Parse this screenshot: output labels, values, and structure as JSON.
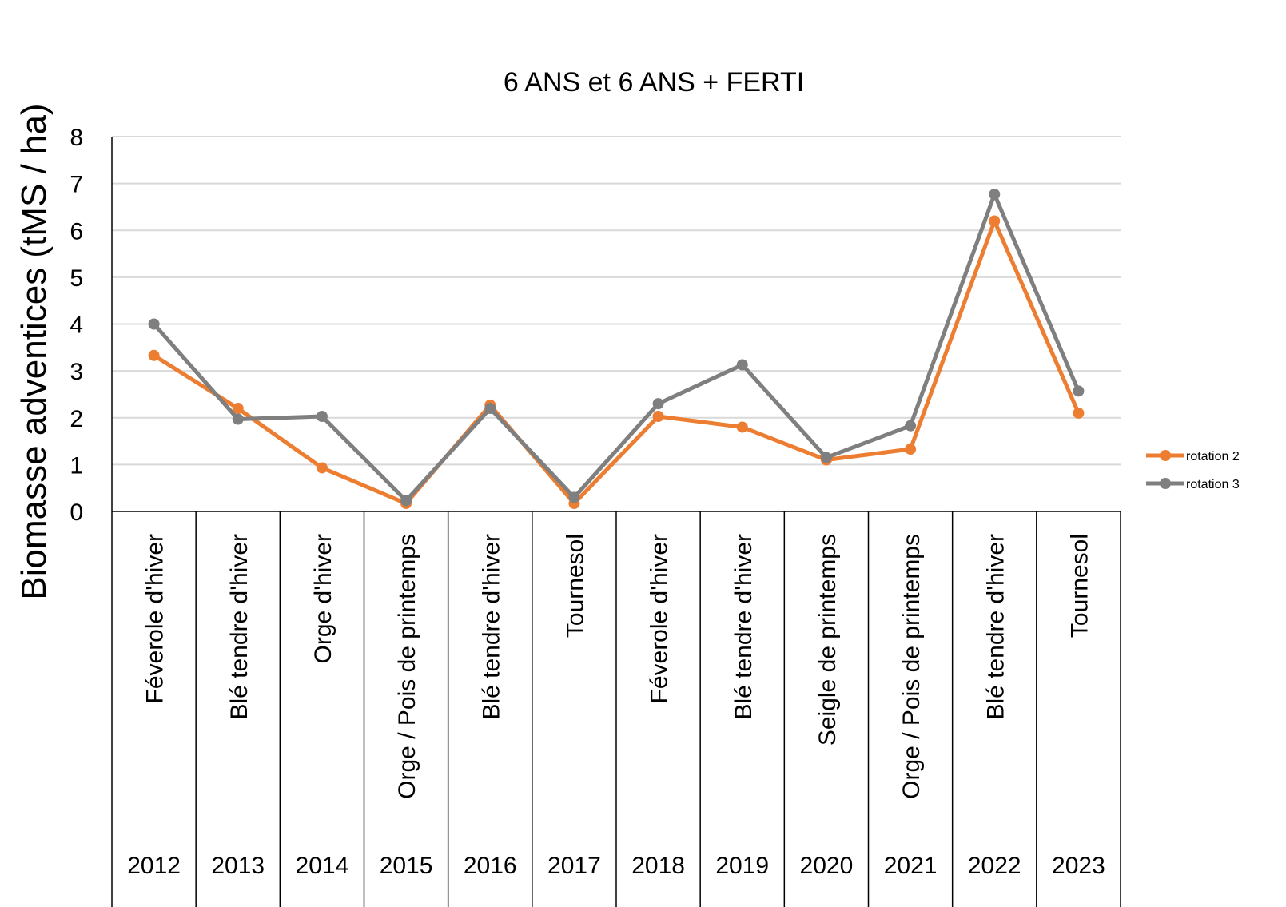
{
  "chart_data": {
    "type": "line",
    "title": "6 ANS et 6 ANS + FERTI",
    "ylabel": "Biomasse adventices (tMS / ha)",
    "xlabel": "",
    "ylim": [
      0,
      8
    ],
    "yticks": [
      0,
      1,
      2,
      3,
      4,
      5,
      6,
      7,
      8
    ],
    "grid": true,
    "legend_position": "right",
    "categories": [
      {
        "crop": "Féverole d'hiver",
        "year": "2012"
      },
      {
        "crop": "Blé tendre d'hiver",
        "year": "2013"
      },
      {
        "crop": "Orge d'hiver",
        "year": "2014"
      },
      {
        "crop": "Orge / Pois de printemps",
        "year": "2015"
      },
      {
        "crop": "Blé tendre d'hiver",
        "year": "2016"
      },
      {
        "crop": "Tournesol",
        "year": "2017"
      },
      {
        "crop": "Féverole d'hiver",
        "year": "2018"
      },
      {
        "crop": "Blé tendre d'hiver",
        "year": "2019"
      },
      {
        "crop": "Seigle de printemps",
        "year": "2020"
      },
      {
        "crop": "Orge / Pois de printemps",
        "year": "2021"
      },
      {
        "crop": "Blé tendre d'hiver",
        "year": "2022"
      },
      {
        "crop": "Tournesol",
        "year": "2023"
      }
    ],
    "series": [
      {
        "name": "rotation 2",
        "color": "#ED7D31",
        "values": [
          3.33,
          2.2,
          0.93,
          0.17,
          2.27,
          0.17,
          2.03,
          1.8,
          1.1,
          1.33,
          6.2,
          2.1
        ]
      },
      {
        "name": "rotation 3",
        "color": "#7F7F7F",
        "values": [
          4.0,
          1.97,
          2.03,
          0.23,
          2.2,
          0.3,
          2.3,
          3.13,
          1.15,
          1.83,
          6.77,
          2.57
        ]
      }
    ]
  }
}
